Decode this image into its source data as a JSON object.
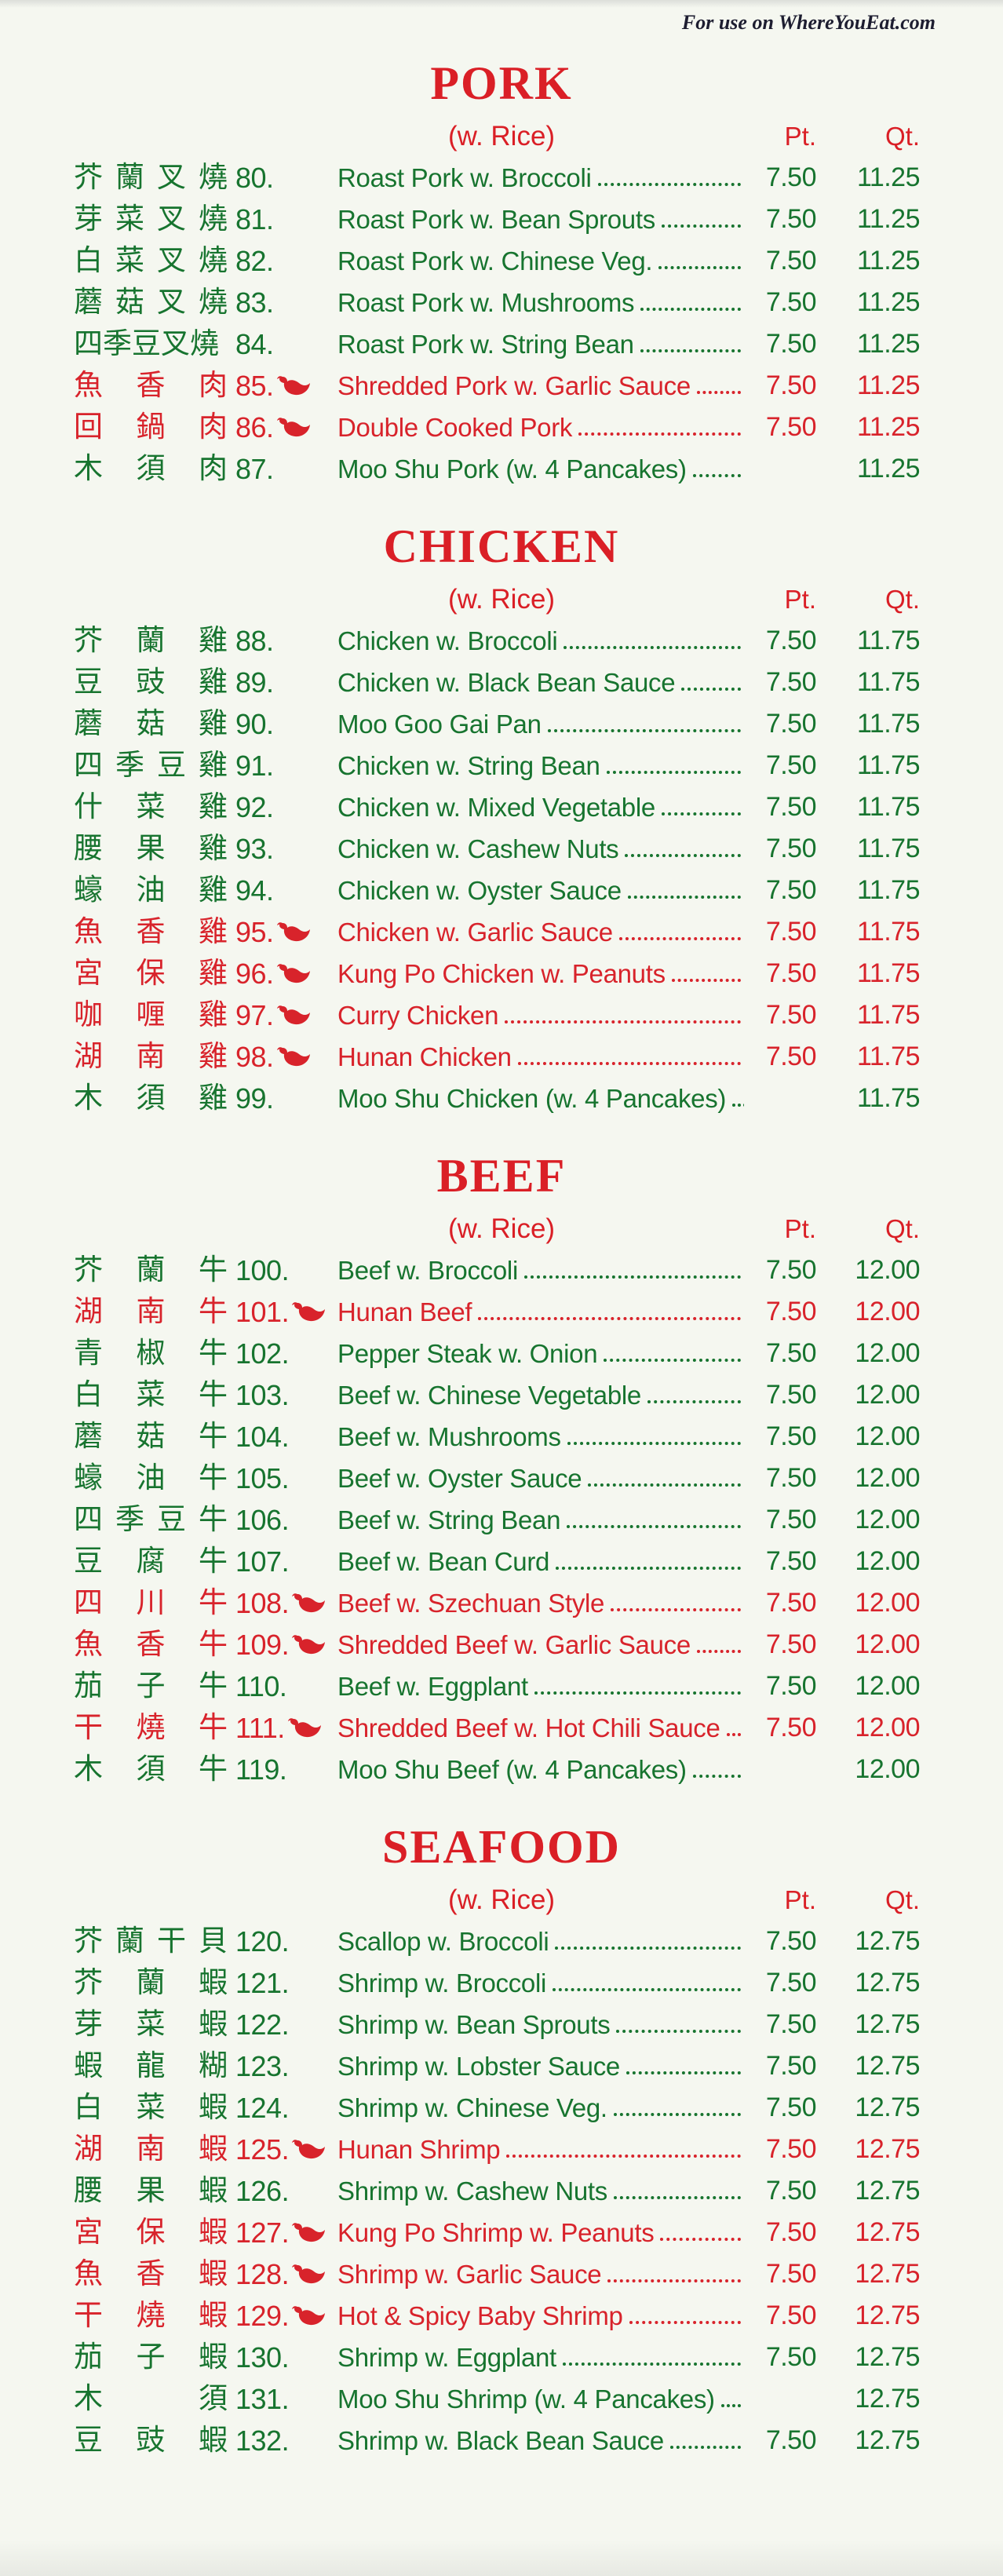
{
  "watermark": "For use on WhereYouEat.com",
  "colors": {
    "title_red": "#da1f26",
    "item_red": "#d8232b",
    "item_green": "#17742f",
    "paper": "#f5f7f0",
    "watermark_ink": "#1d1d30"
  },
  "column_headers": {
    "rice_note": "(w. Rice)",
    "pt": "Pt.",
    "qt": "Qt."
  },
  "icons": {
    "spicy": "chili-pepper-icon"
  },
  "sections": [
    {
      "title": "PORK",
      "items": [
        {
          "cn": "芥蘭叉燒",
          "num": "80.",
          "spicy": false,
          "name": "Roast Pork w. Broccoli",
          "pt": "7.50",
          "qt": "11.25",
          "color": "green"
        },
        {
          "cn": "芽菜叉燒",
          "num": "81.",
          "spicy": false,
          "name": "Roast Pork w. Bean Sprouts",
          "pt": "7.50",
          "qt": "11.25",
          "color": "green"
        },
        {
          "cn": "白菜叉燒",
          "num": "82.",
          "spicy": false,
          "name": "Roast Pork w. Chinese Veg.",
          "pt": "7.50",
          "qt": "11.25",
          "color": "green"
        },
        {
          "cn": "蘑菇叉燒",
          "num": "83.",
          "spicy": false,
          "name": "Roast Pork w. Mushrooms",
          "pt": "7.50",
          "qt": "11.25",
          "color": "green"
        },
        {
          "cn": "四季豆叉燒",
          "num": "84.",
          "spicy": false,
          "name": "Roast Pork w. String Bean",
          "pt": "7.50",
          "qt": "11.25",
          "color": "green"
        },
        {
          "cn": "魚香肉",
          "num": "85.",
          "spicy": true,
          "name": "Shredded Pork w. Garlic Sauce",
          "pt": "7.50",
          "qt": "11.25",
          "color": "red"
        },
        {
          "cn": "回鍋肉",
          "num": "86.",
          "spicy": true,
          "name": "Double Cooked Pork",
          "pt": "7.50",
          "qt": "11.25",
          "color": "red"
        },
        {
          "cn": "木須肉",
          "num": "87.",
          "spicy": false,
          "name": "Moo Shu Pork (w. 4 Pancakes)",
          "pt": "",
          "qt": "11.25",
          "color": "green"
        }
      ]
    },
    {
      "title": "CHICKEN",
      "items": [
        {
          "cn": "芥蘭雞",
          "num": "88.",
          "spicy": false,
          "name": "Chicken w. Broccoli",
          "pt": "7.50",
          "qt": "11.75",
          "color": "green"
        },
        {
          "cn": "豆豉雞",
          "num": "89.",
          "spicy": false,
          "name": "Chicken w. Black Bean Sauce",
          "pt": "7.50",
          "qt": "11.75",
          "color": "green"
        },
        {
          "cn": "蘑菇雞",
          "num": "90.",
          "spicy": false,
          "name": "Moo Goo Gai Pan",
          "pt": "7.50",
          "qt": "11.75",
          "color": "green"
        },
        {
          "cn": "四季豆雞",
          "num": "91.",
          "spicy": false,
          "name": "Chicken w. String Bean",
          "pt": "7.50",
          "qt": "11.75",
          "color": "green"
        },
        {
          "cn": "什菜雞",
          "num": "92.",
          "spicy": false,
          "name": "Chicken w. Mixed Vegetable",
          "pt": "7.50",
          "qt": "11.75",
          "color": "green"
        },
        {
          "cn": "腰果雞",
          "num": "93.",
          "spicy": false,
          "name": "Chicken w. Cashew Nuts",
          "pt": "7.50",
          "qt": "11.75",
          "color": "green"
        },
        {
          "cn": "蠔油雞",
          "num": "94.",
          "spicy": false,
          "name": "Chicken w. Oyster Sauce",
          "pt": "7.50",
          "qt": "11.75",
          "color": "green"
        },
        {
          "cn": "魚香雞",
          "num": "95.",
          "spicy": true,
          "name": "Chicken w. Garlic Sauce",
          "pt": "7.50",
          "qt": "11.75",
          "color": "red"
        },
        {
          "cn": "宮保雞",
          "num": "96.",
          "spicy": true,
          "name": "Kung Po Chicken w. Peanuts",
          "pt": "7.50",
          "qt": "11.75",
          "color": "red"
        },
        {
          "cn": "咖喱雞",
          "num": "97.",
          "spicy": true,
          "name": "Curry Chicken",
          "pt": "7.50",
          "qt": "11.75",
          "color": "red"
        },
        {
          "cn": "湖南雞",
          "num": "98.",
          "spicy": true,
          "name": "Hunan Chicken",
          "pt": "7.50",
          "qt": "11.75",
          "color": "red"
        },
        {
          "cn": "木須雞",
          "num": "99.",
          "spicy": false,
          "name": "Moo Shu Chicken (w. 4 Pancakes)",
          "pt": "",
          "qt": "11.75",
          "color": "green"
        }
      ]
    },
    {
      "title": "BEEF",
      "items": [
        {
          "cn": "芥蘭牛",
          "num": "100.",
          "spicy": false,
          "name": "Beef w. Broccoli",
          "pt": "7.50",
          "qt": "12.00",
          "color": "green"
        },
        {
          "cn": "湖南牛",
          "num": "101.",
          "spicy": true,
          "name": "Hunan Beef",
          "pt": "7.50",
          "qt": "12.00",
          "color": "red"
        },
        {
          "cn": "青椒牛",
          "num": "102.",
          "spicy": false,
          "name": "Pepper Steak w. Onion",
          "pt": "7.50",
          "qt": "12.00",
          "color": "green"
        },
        {
          "cn": "白菜牛",
          "num": "103.",
          "spicy": false,
          "name": "Beef w. Chinese Vegetable",
          "pt": "7.50",
          "qt": "12.00",
          "color": "green"
        },
        {
          "cn": "蘑菇牛",
          "num": "104.",
          "spicy": false,
          "name": "Beef w. Mushrooms",
          "pt": "7.50",
          "qt": "12.00",
          "color": "green"
        },
        {
          "cn": "蠔油牛",
          "num": "105.",
          "spicy": false,
          "name": "Beef w. Oyster Sauce",
          "pt": "7.50",
          "qt": "12.00",
          "color": "green"
        },
        {
          "cn": "四季豆牛",
          "num": "106.",
          "spicy": false,
          "name": "Beef w. String Bean",
          "pt": "7.50",
          "qt": "12.00",
          "color": "green"
        },
        {
          "cn": "豆腐牛",
          "num": "107.",
          "spicy": false,
          "name": "Beef w. Bean Curd",
          "pt": "7.50",
          "qt": "12.00",
          "color": "green"
        },
        {
          "cn": "四川牛",
          "num": "108.",
          "spicy": true,
          "name": "Beef w. Szechuan Style",
          "pt": "7.50",
          "qt": "12.00",
          "color": "red"
        },
        {
          "cn": "魚香牛",
          "num": "109.",
          "spicy": true,
          "name": "Shredded Beef w. Garlic Sauce",
          "pt": "7.50",
          "qt": "12.00",
          "color": "red"
        },
        {
          "cn": "茄子牛",
          "num": "110.",
          "spicy": false,
          "name": "Beef w. Eggplant",
          "pt": "7.50",
          "qt": "12.00",
          "color": "green"
        },
        {
          "cn": "干燒牛",
          "num": "111.",
          "spicy": true,
          "name": "Shredded Beef w. Hot Chili Sauce",
          "pt": "7.50",
          "qt": "12.00",
          "color": "red"
        },
        {
          "cn": "木須牛",
          "num": "119.",
          "spicy": false,
          "name": "Moo Shu Beef (w. 4 Pancakes)",
          "pt": "",
          "qt": "12.00",
          "color": "green"
        }
      ]
    },
    {
      "title": "SEAFOOD",
      "items": [
        {
          "cn": "芥蘭干貝",
          "num": "120.",
          "spicy": false,
          "name": "Scallop w. Broccoli",
          "pt": "7.50",
          "qt": "12.75",
          "color": "green"
        },
        {
          "cn": "芥蘭蝦",
          "num": "121.",
          "spicy": false,
          "name": "Shrimp w. Broccoli",
          "pt": "7.50",
          "qt": "12.75",
          "color": "green"
        },
        {
          "cn": "芽菜蝦",
          "num": "122.",
          "spicy": false,
          "name": "Shrimp w. Bean Sprouts",
          "pt": "7.50",
          "qt": "12.75",
          "color": "green"
        },
        {
          "cn": "蝦龍糊",
          "num": "123.",
          "spicy": false,
          "name": "Shrimp w. Lobster Sauce",
          "pt": "7.50",
          "qt": "12.75",
          "color": "green"
        },
        {
          "cn": "白菜蝦",
          "num": "124.",
          "spicy": false,
          "name": "Shrimp w. Chinese Veg.",
          "pt": "7.50",
          "qt": "12.75",
          "color": "green"
        },
        {
          "cn": "湖南蝦",
          "num": "125.",
          "spicy": true,
          "name": "Hunan Shrimp",
          "pt": "7.50",
          "qt": "12.75",
          "color": "red"
        },
        {
          "cn": "腰果蝦",
          "num": "126.",
          "spicy": false,
          "name": "Shrimp w. Cashew Nuts",
          "pt": "7.50",
          "qt": "12.75",
          "color": "green"
        },
        {
          "cn": "宮保蝦",
          "num": "127.",
          "spicy": true,
          "name": "Kung Po Shrimp w. Peanuts",
          "pt": "7.50",
          "qt": "12.75",
          "color": "red"
        },
        {
          "cn": "魚香蝦",
          "num": "128.",
          "spicy": true,
          "name": "Shrimp w. Garlic Sauce",
          "pt": "7.50",
          "qt": "12.75",
          "color": "red"
        },
        {
          "cn": "干燒蝦",
          "num": "129.",
          "spicy": true,
          "name": "Hot & Spicy Baby Shrimp",
          "pt": "7.50",
          "qt": "12.75",
          "color": "red"
        },
        {
          "cn": "茄子蝦",
          "num": "130.",
          "spicy": false,
          "name": "Shrimp w. Eggplant",
          "pt": "7.50",
          "qt": "12.75",
          "color": "green"
        },
        {
          "cn": "木須",
          "num": "131.",
          "spicy": false,
          "name": "Moo Shu Shrimp  (w. 4 Pancakes)",
          "pt": "",
          "qt": "12.75",
          "color": "green"
        },
        {
          "cn": "豆豉蝦",
          "num": "132.",
          "spicy": false,
          "name": "Shrimp w. Black Bean Sauce",
          "pt": "7.50",
          "qt": "12.75",
          "color": "green"
        }
      ]
    }
  ]
}
